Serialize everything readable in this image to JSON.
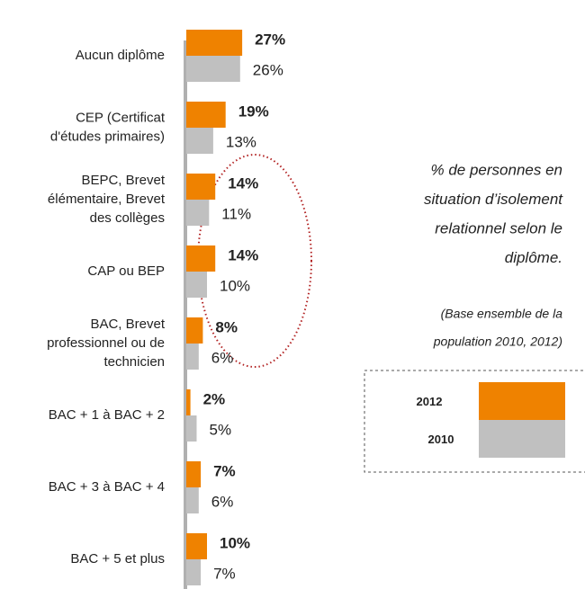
{
  "chart_data": {
    "type": "bar",
    "orientation": "horizontal",
    "title": "% de personnes en\nsituation d’isolement\nrelationnel selon le\ndiplôme.",
    "subtitle": "(Base ensemble de la\npopulation 2010, 2012)",
    "categories": [
      "Aucun diplôme",
      "CEP (Certificat\nd'études primaires)",
      "BEPC, Brevet\nélémentaire, Brevet\ndes collèges",
      "CAP ou BEP",
      "BAC, Brevet\nprofessionnel ou de\ntechnicien",
      "BAC + 1 à BAC + 2",
      "BAC + 3 à BAC + 4",
      "BAC + 5 et plus"
    ],
    "series": [
      {
        "name": "2012",
        "color": "#ef8200",
        "values": [
          27,
          19,
          14,
          14,
          8,
          2,
          7,
          10
        ],
        "value_labels": [
          "27%",
          "19%",
          "14%",
          "14%",
          "8%",
          "2%",
          "7%",
          "10%"
        ]
      },
      {
        "name": "2010",
        "color": "#c0c0c0",
        "values": [
          26,
          13,
          11,
          10,
          6,
          5,
          6,
          7
        ],
        "value_labels": [
          "26%",
          "13%",
          "11%",
          "10%",
          "6%",
          "5%",
          "6%",
          "7%"
        ]
      }
    ],
    "legend": "right"
  }
}
